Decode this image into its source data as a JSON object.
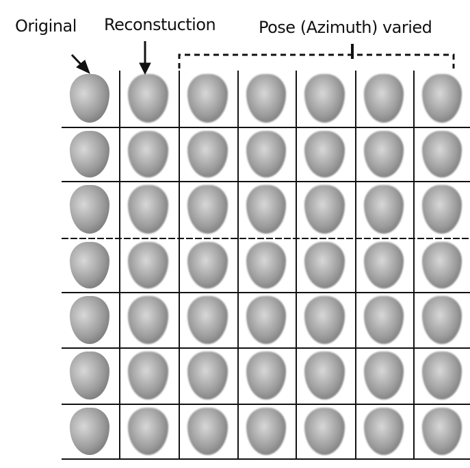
{
  "labels": {
    "original": "Original",
    "reconstruction": "Reconstuction",
    "pose_varied": "Pose (Azimuth) varied"
  },
  "grid": {
    "rows": 7,
    "columns": [
      "original",
      "reconstruction",
      "pose-1",
      "pose-2",
      "pose-3",
      "pose-4",
      "pose-5"
    ]
  },
  "colors": {
    "ink": "#111111",
    "face_light": "#d8d8d8",
    "face_dark": "#5a5a5a"
  }
}
